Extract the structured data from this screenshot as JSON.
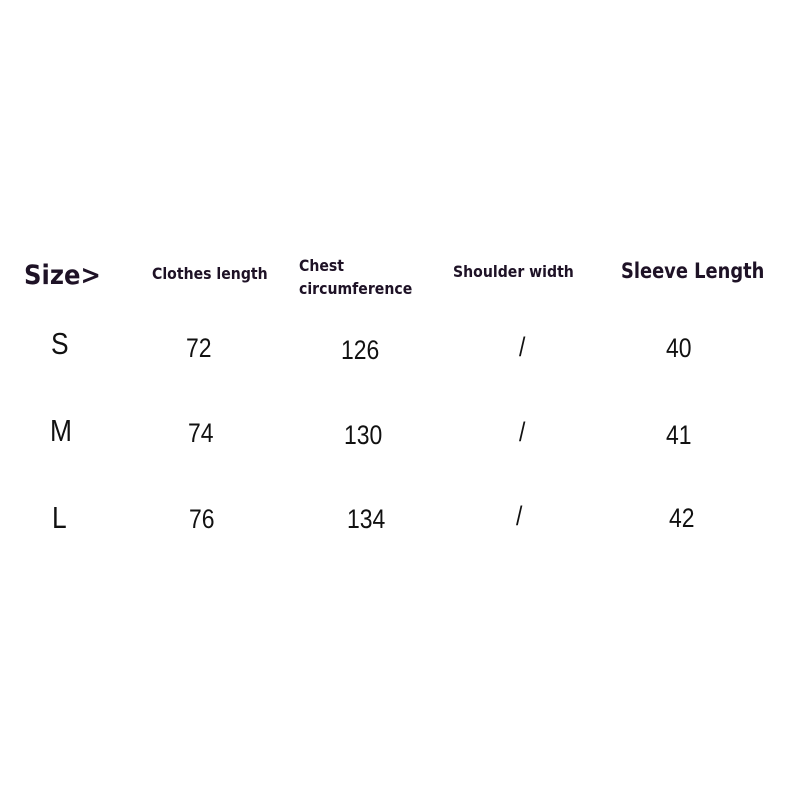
{
  "table": {
    "headers": {
      "size": "Size>",
      "clothes_length": "Clothes length",
      "chest_line1": "Chest",
      "chest_line2": "circumference",
      "shoulder_width": "Shoulder width",
      "sleeve_length": "Sleeve Length"
    },
    "rows": [
      {
        "size": "S",
        "clothes_length": "72",
        "chest": "126",
        "shoulder": "/",
        "sleeve": "40"
      },
      {
        "size": "M",
        "clothes_length": "74",
        "chest": "130",
        "shoulder": "/",
        "sleeve": "41"
      },
      {
        "size": "L",
        "clothes_length": "76",
        "chest": "134",
        "shoulder": "/",
        "sleeve": "42"
      }
    ]
  }
}
